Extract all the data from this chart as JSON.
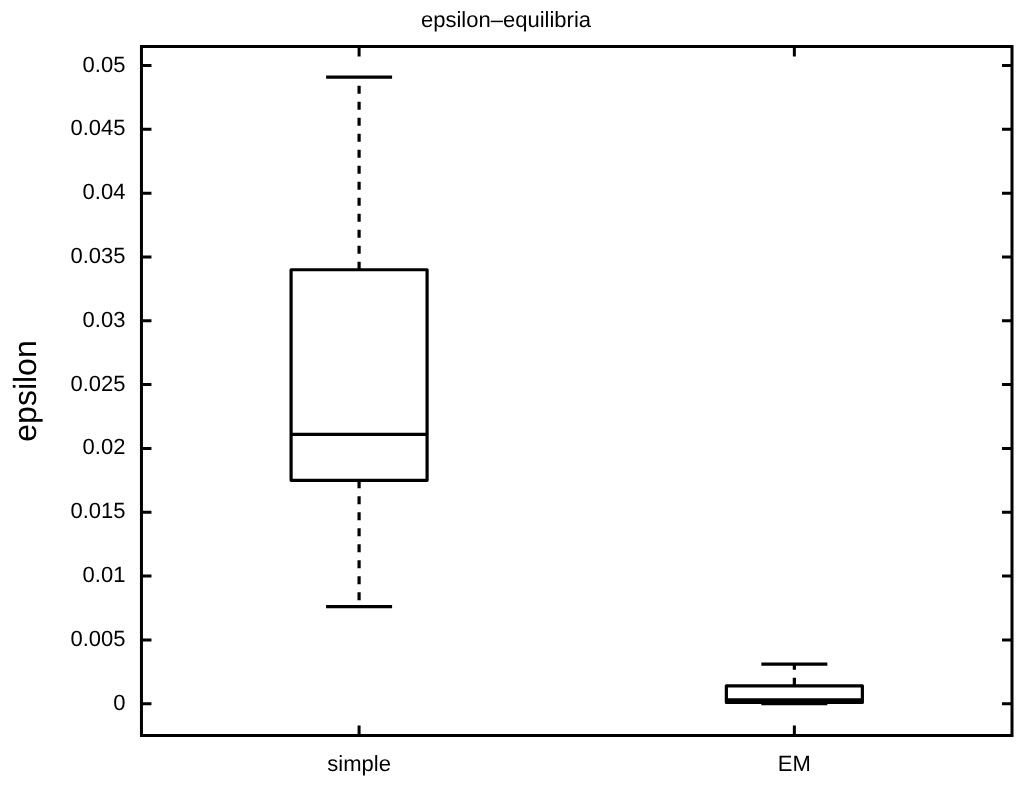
{
  "chart_data": {
    "type": "box",
    "title": "epsilon–equilibria",
    "ylabel": "epsilon",
    "categories": [
      "simple",
      "EM"
    ],
    "boxes": [
      {
        "low": 0.0076,
        "q1": 0.0175,
        "median": 0.0211,
        "q3": 0.034,
        "high": 0.0491
      },
      {
        "low": 0,
        "q1": 0.0001,
        "median": 0.0003,
        "q3": 0.0014,
        "high": 0.0031
      }
    ],
    "ylim": [
      -0.0025,
      0.0515
    ],
    "yticks": [
      0,
      0.005,
      0.01,
      0.015,
      0.02,
      0.025,
      0.03,
      0.035,
      0.04,
      0.045,
      0.05
    ],
    "grid": false,
    "legend": false
  }
}
